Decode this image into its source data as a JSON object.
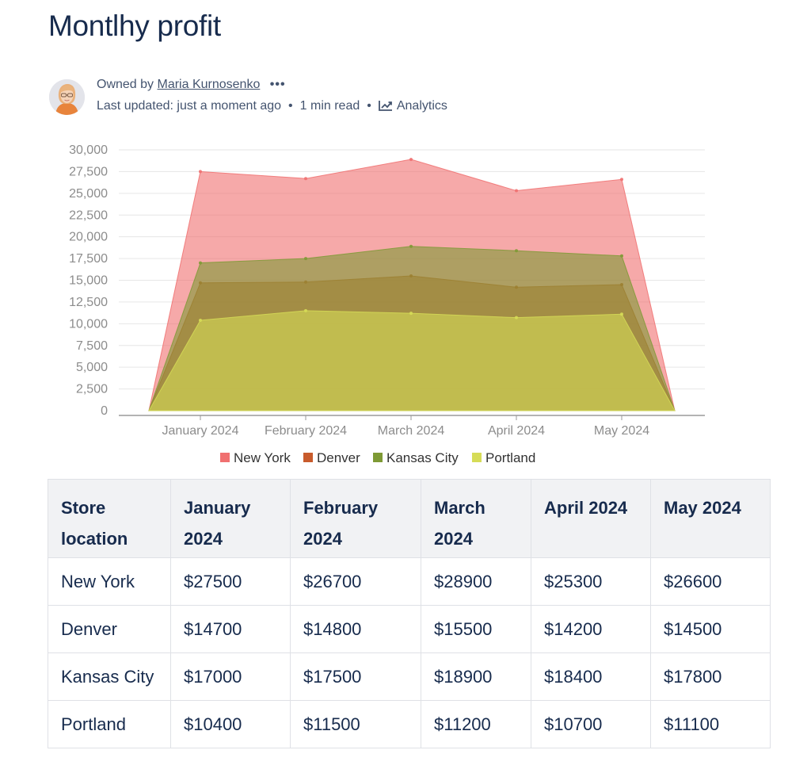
{
  "page": {
    "title": "Montlhy profit",
    "owned_by_label": "Owned by",
    "owner": "Maria Kurnosenko",
    "more": "•••",
    "last_updated": "Last updated: just a moment ago",
    "separator": "•",
    "read_time": "1 min read",
    "analytics": "Analytics"
  },
  "colors": {
    "New York": "#f07070",
    "Denver": "#c85b2c",
    "Kansas City": "#7e9a35",
    "Portland": "#d6dc57"
  },
  "chart_data": {
    "type": "area",
    "categories": [
      "January 2024",
      "February 2024",
      "March 2024",
      "April 2024",
      "May 2024"
    ],
    "ylim": [
      0,
      30000
    ],
    "yticks": [
      "0",
      "2,500",
      "5,000",
      "7,500",
      "10,000",
      "12,500",
      "15,000",
      "17,500",
      "20,000",
      "22,500",
      "25,000",
      "27,500",
      "30,000"
    ],
    "grid": true,
    "legend": "bottom",
    "series": [
      {
        "name": "New York",
        "values": [
          27500,
          26700,
          28900,
          25300,
          26600
        ]
      },
      {
        "name": "Denver",
        "values": [
          14700,
          14800,
          15500,
          14200,
          14500
        ]
      },
      {
        "name": "Kansas City",
        "values": [
          17000,
          17500,
          18900,
          18400,
          17800
        ]
      },
      {
        "name": "Portland",
        "values": [
          10400,
          11500,
          11200,
          10700,
          11100
        ]
      }
    ]
  },
  "table": {
    "headers": [
      "Store location",
      "January 2024",
      "February 2024",
      "March 2024",
      "April 2024",
      "May 2024"
    ],
    "rows": [
      [
        "New York",
        "$27500",
        "$26700",
        "$28900",
        "$25300",
        "$26600"
      ],
      [
        "Denver",
        "$14700",
        "$14800",
        "$15500",
        "$14200",
        "$14500"
      ],
      [
        "Kansas City",
        "$17000",
        "$17500",
        "$18900",
        "$18400",
        "$17800"
      ],
      [
        "Portland",
        "$10400",
        "$11500",
        "$11200",
        "$10700",
        "$11100"
      ]
    ]
  }
}
